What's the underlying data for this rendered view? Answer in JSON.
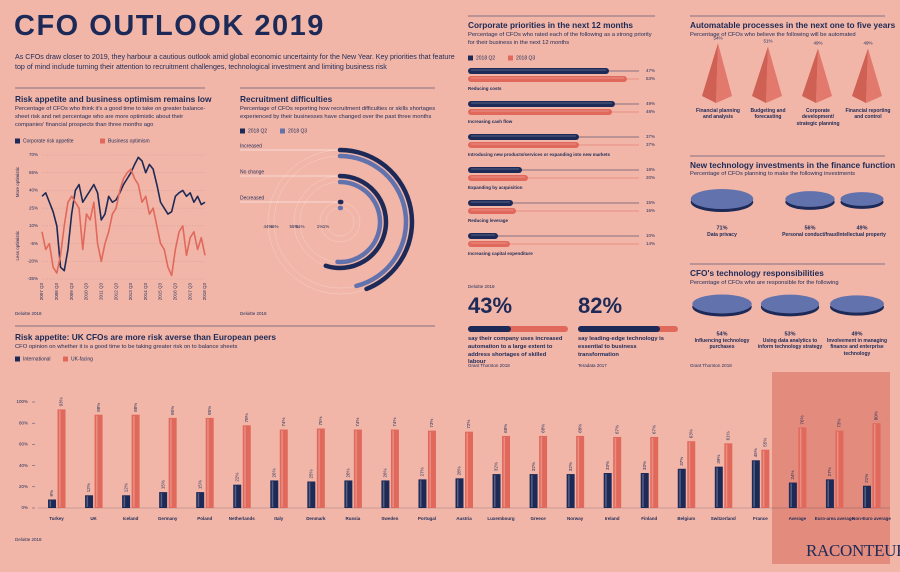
{
  "header": {
    "title": "CFO OUTLOOK 2019",
    "intro": "As CFOs draw closer to 2019, they harbour a cautious outlook amid global economic uncertainty for the New Year. Key priorities that feature top of mind include turning their attention to recruitment challenges, technological investment and limiting business risk",
    "logo": "RACONTEUR"
  },
  "chart_data": [
    {
      "type": "line",
      "title": "Risk appetite and business optimism remains low",
      "subtitle": "Percentage of CFOs who think it's a good time to take on greater balance-sheet risk and net percentage who are more optimistic about their companies' financial prospects than three months ago",
      "y_label_top": "More optimistic",
      "y_label_bottom": "Less optimistic",
      "source": "Deloitte 2018",
      "categories": [
        "2007 Q3",
        null,
        null,
        null,
        "2008 Q3",
        null,
        null,
        null,
        "2009 Q3",
        null,
        null,
        null,
        "2010 Q3",
        null,
        null,
        null,
        "2011 Q3",
        null,
        null,
        null,
        "2012 Q3",
        null,
        null,
        null,
        "2013 Q3",
        null,
        null,
        null,
        "2014 Q3",
        null,
        null,
        null,
        "2015 Q3",
        null,
        null,
        null,
        "2016 Q3",
        null,
        null,
        null,
        "2017 Q3",
        null,
        null,
        null,
        "2018 Q3"
      ],
      "series": [
        {
          "name": "Corporate risk appetite",
          "color": "#1d2a57",
          "values": [
            35,
            38,
            30,
            22,
            10,
            -25,
            -28,
            -10,
            20,
            40,
            45,
            30,
            35,
            40,
            45,
            38,
            15,
            20,
            35,
            30,
            32,
            38,
            45,
            50,
            55,
            62,
            68,
            65,
            55,
            62,
            58,
            45,
            30,
            25,
            20,
            22,
            35,
            38,
            40,
            35,
            38,
            30,
            35,
            28,
            30
          ]
        },
        {
          "name": "Business optimism",
          "color": "#e0695c",
          "values": [
            5,
            -10,
            -5,
            -25,
            -30,
            -15,
            10,
            30,
            35,
            30,
            25,
            -10,
            20,
            15,
            30,
            -5,
            -20,
            -5,
            5,
            20,
            25,
            40,
            50,
            55,
            58,
            50,
            45,
            30,
            35,
            20,
            25,
            10,
            -5,
            -10,
            -25,
            -32,
            -10,
            5,
            10,
            -15,
            0,
            5,
            -10,
            0,
            -15
          ]
        }
      ],
      "ylim": [
        -35,
        70
      ],
      "yticks": [
        {
          "value": 70,
          "label": "70%"
        },
        {
          "value": 55,
          "label": "55%"
        },
        {
          "value": 40,
          "label": "40%"
        },
        {
          "value": 25,
          "label": "25%"
        },
        {
          "value": 10,
          "label": "10%"
        },
        {
          "value": -5,
          "label": "-5%"
        },
        {
          "value": -20,
          "label": "-20%"
        },
        {
          "value": -35,
          "label": "-35%"
        }
      ],
      "grid": true
    },
    {
      "type": "radial_bar",
      "title": "Recruitment difficulties",
      "subtitle": "Percentage of CFOs reporting how recruitment difficulties or skills shortages experienced by their businesses have changed over the past three months",
      "source": "Deloitte 2018",
      "categories": [
        "Increased",
        "No change",
        "Decreased"
      ],
      "series": [
        {
          "name": "2018 Q2",
          "color": "#1d2a57",
          "values": [
            44,
            55,
            1
          ],
          "value_labels": [
            "44%",
            "55%",
            "1%"
          ]
        },
        {
          "name": "2018 Q3",
          "color": "#6272ad",
          "values": [
            46,
            51,
            1
          ],
          "value_labels": [
            "46%",
            "51%",
            "1%"
          ]
        }
      ]
    },
    {
      "type": "hbar",
      "title": "Corporate priorities in the next 12 months",
      "subtitle": "Percentage of CFOs who rated each of the following as a strong priority for their business in the next 12 months",
      "source": "Deloitte 2018",
      "categories": [
        "Reducing costs",
        "Increasing cash flow",
        "Introducing new products/services or expanding into new markets",
        "Expanding by acquisition",
        "Reducing leverage",
        "Increasing capital expenditure"
      ],
      "series": [
        {
          "name": "2018 Q2",
          "color": "#1d2a57",
          "values": [
            47,
            49,
            37,
            18,
            15,
            10
          ],
          "value_labels": [
            "47%",
            "49%",
            "37%",
            "18%",
            "15%",
            "10%"
          ]
        },
        {
          "name": "2018 Q3",
          "color": "#e0695c",
          "values": [
            53,
            48,
            37,
            20,
            16,
            14
          ],
          "value_labels": [
            "53%",
            "48%",
            "37%",
            "20%",
            "16%",
            "14%"
          ]
        }
      ]
    },
    {
      "type": "stats",
      "color": "#1d2a57",
      "track_color": "#e0695c",
      "items": [
        {
          "value": 43,
          "value_label": "43%",
          "text": "say their company uses increased automation to a large extent to address shortages of skilled labour",
          "source": "Grant Thornton 2018"
        },
        {
          "value": 82,
          "value_label": "82%",
          "text": "say leading-edge technology is essential to business transformation",
          "source": "Teradata 2017"
        }
      ]
    },
    {
      "type": "pyramid",
      "title": "Automatable processes in the next one to five years",
      "subtitle": "Percentage of CFOs who believe the following will be automated",
      "color": "#e0695c",
      "categories": [
        "Financial planning and analysis",
        "Budgeting and forecasting",
        "Corporate development/ strategic planning",
        "Financial reporting and control"
      ],
      "values": [
        54,
        51,
        49,
        49
      ],
      "value_labels": [
        "54%",
        "51%",
        "49%",
        "49%"
      ]
    },
    {
      "type": "disc",
      "title": "New technology investments in the finance function",
      "subtitle": "Percentage of CFOs planning to make the following investments",
      "color": "#6272ad",
      "categories": [
        "Data privacy",
        "Personal conduct/fraud",
        "Intellectual property"
      ],
      "values": [
        71,
        56,
        49
      ],
      "value_labels": [
        "71%",
        "56%",
        "49%"
      ]
    },
    {
      "type": "disc",
      "title": "CFO's technology responsibilities",
      "subtitle": "Percentage of CFOs who are responsible for the following",
      "source": "Grant Thornton 2018",
      "color": "#6272ad",
      "categories": [
        "Influencing technology purchases",
        "Using data analytics to inform technology strategy",
        "Involvement in managing finance and enterprise technology"
      ],
      "values": [
        54,
        53,
        49
      ],
      "value_labels": [
        "54%",
        "53%",
        "49%"
      ]
    },
    {
      "type": "bar",
      "title": "Risk appetite: UK CFOs are more risk averse than European peers",
      "subtitle": "CFO opinion on whether it is a good time to be taking greater risk on to balance sheets",
      "source": "Deloitte 2018",
      "categories": [
        "Turkey",
        "UK",
        "Iceland",
        "Germany",
        "Poland",
        "Netherlands",
        "Italy",
        "Denmark",
        "Russia",
        "Sweden",
        "Portugal",
        "Austria",
        "Luxembourg",
        "Greece",
        "Norway",
        "Ireland",
        "Finland",
        "Belgium",
        "Switzerland",
        "France",
        "Average",
        "Euro-area average",
        "Non-Euro average"
      ],
      "series": [
        {
          "name": "International",
          "color": "#1d2a57",
          "values": [
            8,
            12,
            12,
            15,
            15,
            22,
            26,
            25,
            26,
            26,
            27,
            28,
            32,
            32,
            32,
            33,
            33,
            37,
            39,
            45,
            24,
            27,
            21
          ],
          "value_labels": [
            "8%",
            "12%",
            "12%",
            "15%",
            "15%",
            "22%",
            "26%",
            "25%",
            "26%",
            "26%",
            "27%",
            "28%",
            "32%",
            "32%",
            "32%",
            "33%",
            "33%",
            "37%",
            "39%",
            "45%",
            "24%",
            "27%",
            "21%"
          ]
        },
        {
          "name": "UK-facing",
          "color": "#e0695c",
          "values": [
            93,
            88,
            88,
            85,
            85,
            78,
            74,
            75,
            74,
            74,
            73,
            72,
            68,
            68,
            68,
            67,
            67,
            63,
            61,
            55,
            76,
            73,
            80
          ],
          "value_labels": [
            "93%",
            "88%",
            "88%",
            "85%",
            "85%",
            "78%",
            "74%",
            "75%",
            "74%",
            "74%",
            "73%",
            "72%",
            "68%",
            "68%",
            "68%",
            "67%",
            "67%",
            "63%",
            "61%",
            "55%",
            "76%",
            "73%",
            "80%"
          ]
        }
      ],
      "ylim": [
        0,
        100
      ],
      "yticks": [
        {
          "value": 0,
          "label": "0%"
        },
        {
          "value": 20,
          "label": "20%"
        },
        {
          "value": 40,
          "label": "40%"
        },
        {
          "value": 60,
          "label": "60%"
        },
        {
          "value": 80,
          "label": "80%"
        },
        {
          "value": 100,
          "label": "100%"
        }
      ],
      "grid": false
    }
  ]
}
